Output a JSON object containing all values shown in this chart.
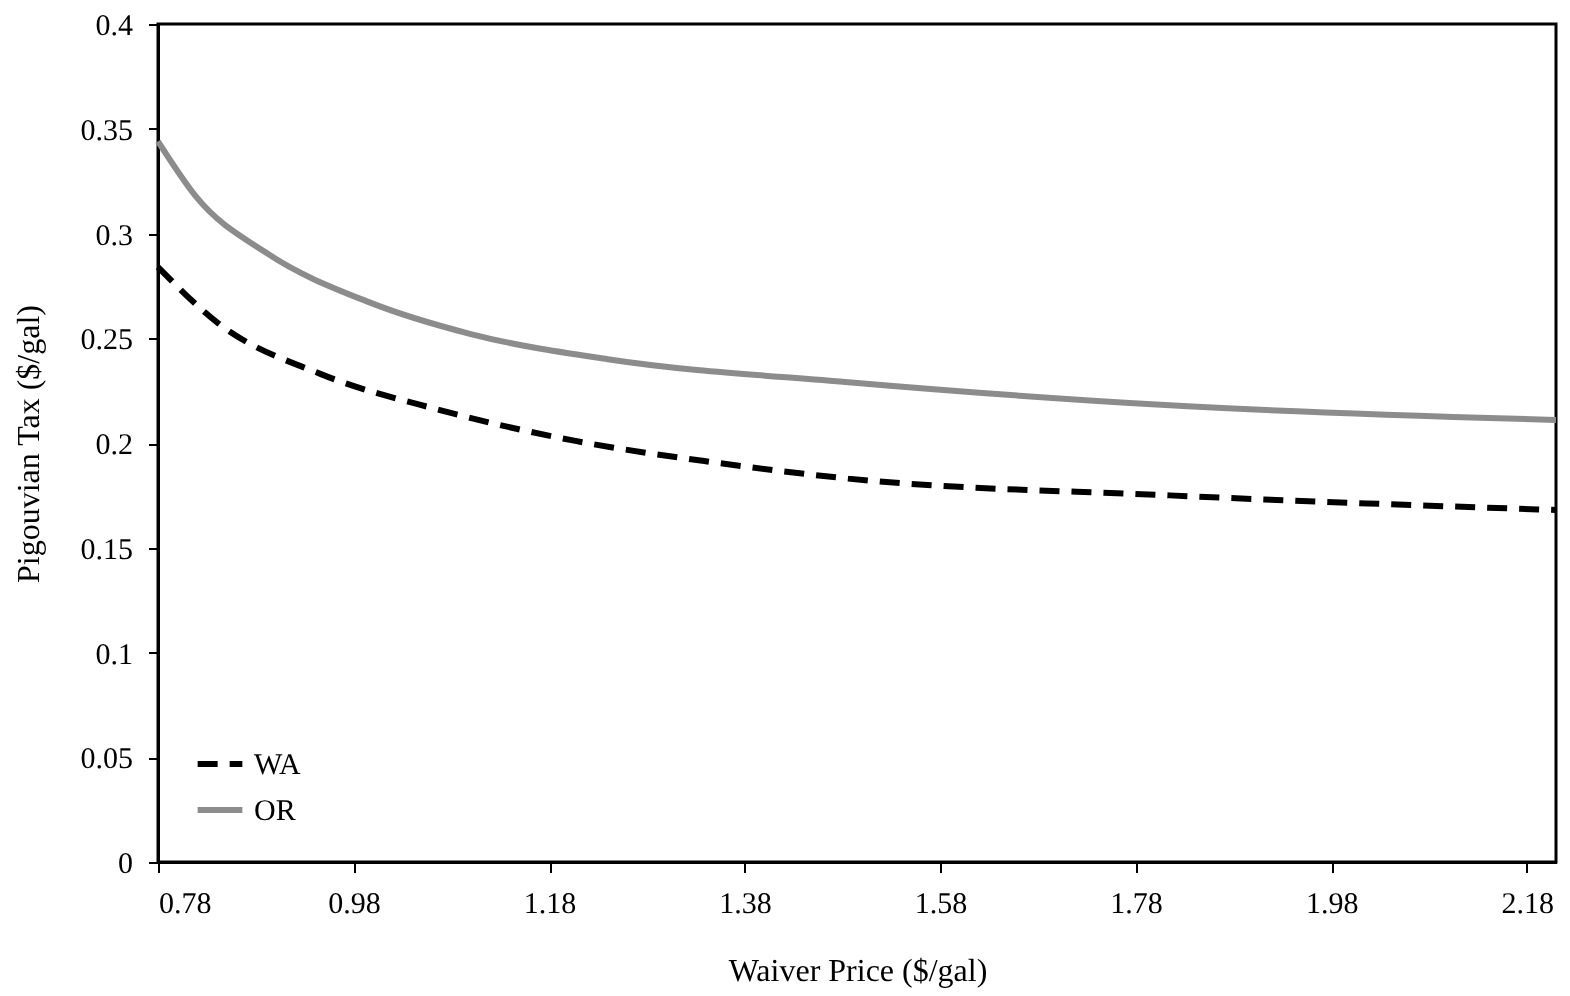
{
  "chart_data": {
    "type": "line",
    "xlabel": "Waiver Price ($/gal)",
    "ylabel": "Pigouvian Tax ($/gal)",
    "xlim": [
      0.78,
      2.21
    ],
    "ylim": [
      0,
      0.4
    ],
    "xticks": [
      0.78,
      0.98,
      1.18,
      1.38,
      1.58,
      1.78,
      1.98,
      2.18
    ],
    "yticks": [
      0,
      0.05,
      0.1,
      0.15,
      0.2,
      0.25,
      0.3,
      0.35,
      0.4
    ],
    "grid": false,
    "legend": "bottom left",
    "series": [
      {
        "name": "WA",
        "color": "#000000",
        "line_style": "dashed",
        "x": [
          0.78,
          0.842,
          0.946,
          1.066,
          1.207,
          1.345,
          1.486,
          1.815,
          2.21
        ],
        "values": [
          0.284,
          0.257,
          0.233,
          0.216,
          0.201,
          0.191,
          0.183,
          0.175,
          0.168
        ]
      },
      {
        "name": "OR",
        "color": "#8c8c8c",
        "line_style": "solid",
        "x": [
          0.78,
          0.82,
          0.89,
          0.997,
          1.1,
          1.24,
          1.486,
          1.815,
          2.21
        ],
        "values": [
          0.344,
          0.317,
          0.291,
          0.267,
          0.252,
          0.24,
          0.229,
          0.218,
          0.211
        ]
      }
    ]
  }
}
